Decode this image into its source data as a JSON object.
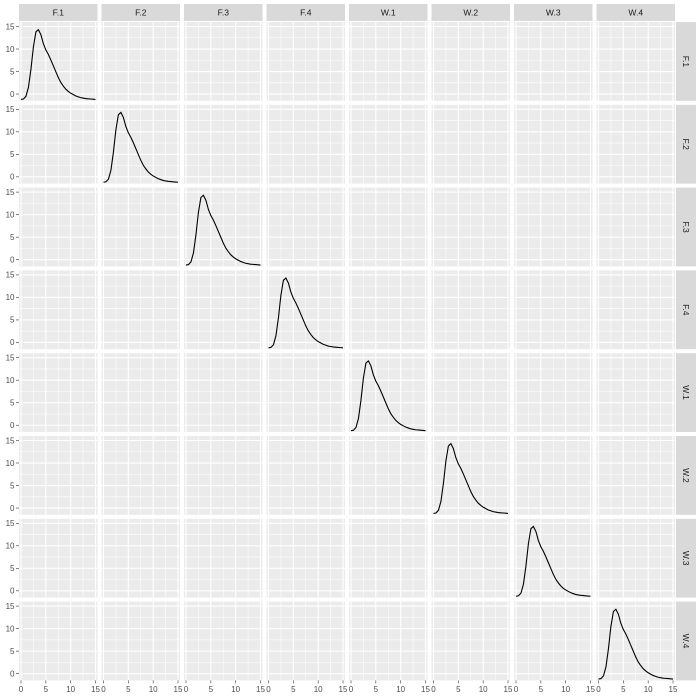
{
  "chart_data": {
    "type": "line",
    "layout": "facet_grid",
    "rows": [
      "F.1",
      "F.2",
      "F.3",
      "F.4",
      "W.1",
      "W.2",
      "W.3",
      "W.4"
    ],
    "cols": [
      "F.1",
      "F.2",
      "F.3",
      "F.4",
      "W.1",
      "W.2",
      "W.3",
      "W.4"
    ],
    "xlim": [
      0,
      15
    ],
    "ylim": [
      -1.5,
      16
    ],
    "x_ticks": [
      "0",
      "5",
      "10",
      "15"
    ],
    "y_ticks": [
      "0",
      "5",
      "10",
      "15"
    ],
    "x_tick_values": [
      0,
      5,
      10,
      15
    ],
    "y_tick_values": [
      0,
      5,
      10,
      15
    ],
    "grid": true,
    "series": [
      {
        "panel": "diagonal",
        "x": [
          0.0,
          0.5,
          1.0,
          1.5,
          2.0,
          2.5,
          3.0,
          3.5,
          4.0,
          4.5,
          5.0,
          5.5,
          6.0,
          6.5,
          7.0,
          7.5,
          8.0,
          8.5,
          9.0,
          9.5,
          10.0,
          10.5,
          11.0,
          11.5,
          12.0,
          12.5,
          13.0,
          13.5,
          14.0,
          14.5,
          15.0
        ],
        "y": [
          -1.2,
          -1.1,
          -0.5,
          1.5,
          5.5,
          10.5,
          13.8,
          14.3,
          13.2,
          11.2,
          9.8,
          8.8,
          7.6,
          6.3,
          5.0,
          3.7,
          2.6,
          1.8,
          1.1,
          0.6,
          0.2,
          -0.1,
          -0.4,
          -0.6,
          -0.8,
          -0.9,
          -1.0,
          -1.05,
          -1.1,
          -1.15,
          -1.2
        ]
      }
    ]
  }
}
